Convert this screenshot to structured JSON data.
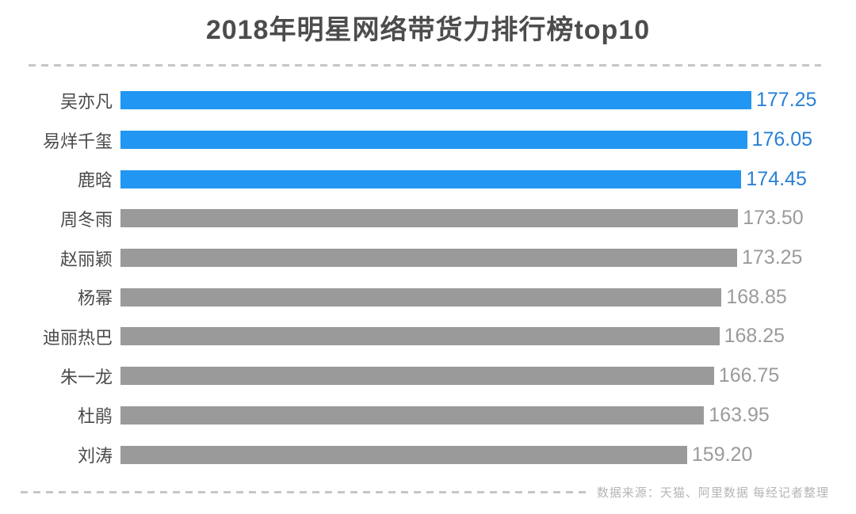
{
  "chart_data": {
    "type": "bar",
    "orientation": "horizontal",
    "title": "2018年明星网络带货力排行榜top10",
    "categories": [
      "吴亦凡",
      "易烊千玺",
      "鹿晗",
      "周冬雨",
      "赵丽颖",
      "杨幂",
      "迪丽热巴",
      "朱一龙",
      "杜鹃",
      "刘涛"
    ],
    "values": [
      177.25,
      176.05,
      174.45,
      173.5,
      173.25,
      168.85,
      168.25,
      166.75,
      163.95,
      159.2
    ],
    "value_labels": [
      "177.25",
      "176.05",
      "174.45",
      "173.50",
      "173.25",
      "168.85",
      "168.25",
      "166.75",
      "163.95",
      "159.20"
    ],
    "highlight_count": 3,
    "xlim": [
      0,
      177.25
    ],
    "grid": false,
    "legend": false,
    "xlabel": "",
    "ylabel": "",
    "colors": {
      "highlight_bar": "#2196f3",
      "default_bar": "#9a9a9a",
      "highlight_value_text": "#2a80d5",
      "default_value_text": "#9b9b9b",
      "label_text": "#4a4a4a",
      "title_text": "#4c4c4c",
      "divider": "#c6c6c6",
      "source_text": "#b5b5b5"
    }
  },
  "footer": {
    "source_note": "数据来源：天猫、阿里数据  每经记者整理"
  }
}
